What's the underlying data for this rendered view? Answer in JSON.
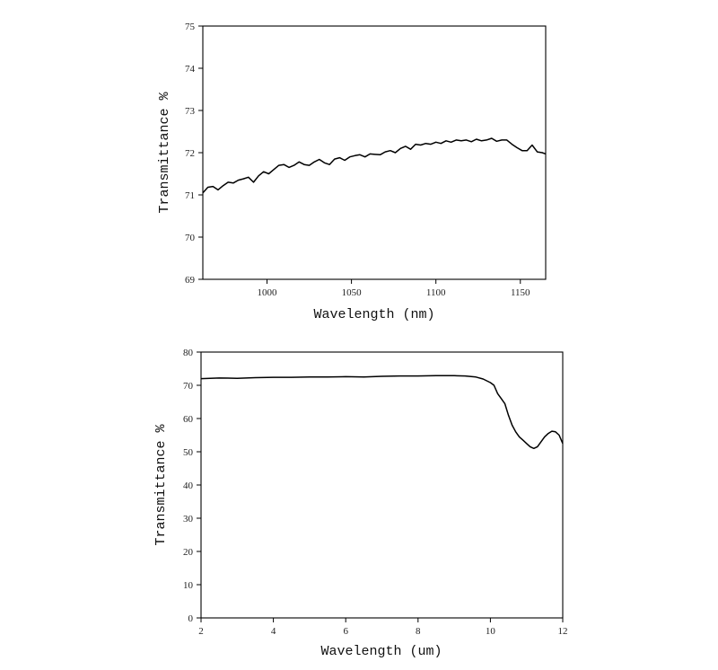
{
  "chart_data": [
    {
      "type": "line",
      "title": "",
      "xlabel": "Wavelength (nm)",
      "ylabel": "Transmittance  %",
      "xlim": [
        962,
        1165
      ],
      "ylim": [
        69,
        75
      ],
      "xticks": [
        1000,
        1050,
        1100,
        1150
      ],
      "yticks": [
        69,
        70,
        71,
        72,
        73,
        74,
        75
      ],
      "grid": false,
      "series": [
        {
          "x": [
            962,
            965,
            968,
            971,
            974,
            977,
            980,
            983,
            986,
            989,
            992,
            995,
            998,
            1001,
            1004,
            1007,
            1010,
            1013,
            1016,
            1019,
            1022,
            1025,
            1028,
            1031,
            1034,
            1037,
            1040,
            1043,
            1046,
            1049,
            1052,
            1055,
            1058,
            1061,
            1064,
            1067,
            1070,
            1073,
            1076,
            1079,
            1082,
            1085,
            1088,
            1091,
            1094,
            1097,
            1100,
            1103,
            1106,
            1109,
            1112,
            1115,
            1118,
            1121,
            1124,
            1127,
            1130,
            1133,
            1136,
            1139,
            1142,
            1145,
            1148,
            1151,
            1154,
            1157,
            1160,
            1163,
            1165
          ],
          "y": [
            71.05,
            71.18,
            71.2,
            71.12,
            71.22,
            71.3,
            71.28,
            71.35,
            71.38,
            71.42,
            71.3,
            71.45,
            71.55,
            71.5,
            71.6,
            71.7,
            71.72,
            71.65,
            71.7,
            71.78,
            71.72,
            71.7,
            71.78,
            71.84,
            71.76,
            71.72,
            71.85,
            71.88,
            71.82,
            71.9,
            71.93,
            71.95,
            71.9,
            71.97,
            71.96,
            71.95,
            72.02,
            72.05,
            72.0,
            72.1,
            72.15,
            72.08,
            72.2,
            72.18,
            72.22,
            72.2,
            72.25,
            72.22,
            72.28,
            72.25,
            72.3,
            72.28,
            72.3,
            72.26,
            72.32,
            72.28,
            72.3,
            72.34,
            72.27,
            72.3,
            72.3,
            72.2,
            72.12,
            72.05,
            72.05,
            72.18,
            72.02,
            72.0,
            71.97
          ]
        }
      ]
    },
    {
      "type": "line",
      "title": "",
      "xlabel": "Wavelength (um)",
      "ylabel": "Transmittance  %",
      "xlim": [
        2,
        12
      ],
      "ylim": [
        0,
        80
      ],
      "xticks": [
        2,
        4,
        6,
        8,
        10,
        12
      ],
      "yticks": [
        0,
        10,
        20,
        30,
        40,
        50,
        60,
        70,
        80
      ],
      "grid": false,
      "series": [
        {
          "x": [
            2,
            2.5,
            3,
            3.5,
            4,
            4.5,
            5,
            5.5,
            6,
            6.5,
            7,
            7.5,
            8,
            8.5,
            9,
            9.3,
            9.6,
            9.8,
            10,
            10.1,
            10.2,
            10.3,
            10.4,
            10.5,
            10.6,
            10.7,
            10.8,
            10.9,
            11,
            11.1,
            11.2,
            11.3,
            11.4,
            11.5,
            11.6,
            11.7,
            11.8,
            11.9,
            12
          ],
          "y": [
            72,
            72.2,
            72.1,
            72.3,
            72.4,
            72.4,
            72.5,
            72.5,
            72.6,
            72.5,
            72.7,
            72.8,
            72.8,
            72.9,
            72.9,
            72.8,
            72.5,
            71.9,
            70.8,
            70.0,
            67.5,
            66.0,
            64.5,
            61.0,
            58.0,
            56.0,
            54.5,
            53.5,
            52.5,
            51.5,
            51.0,
            51.5,
            53.0,
            54.5,
            55.5,
            56.2,
            56.0,
            55.0,
            52.5
          ]
        }
      ]
    }
  ]
}
